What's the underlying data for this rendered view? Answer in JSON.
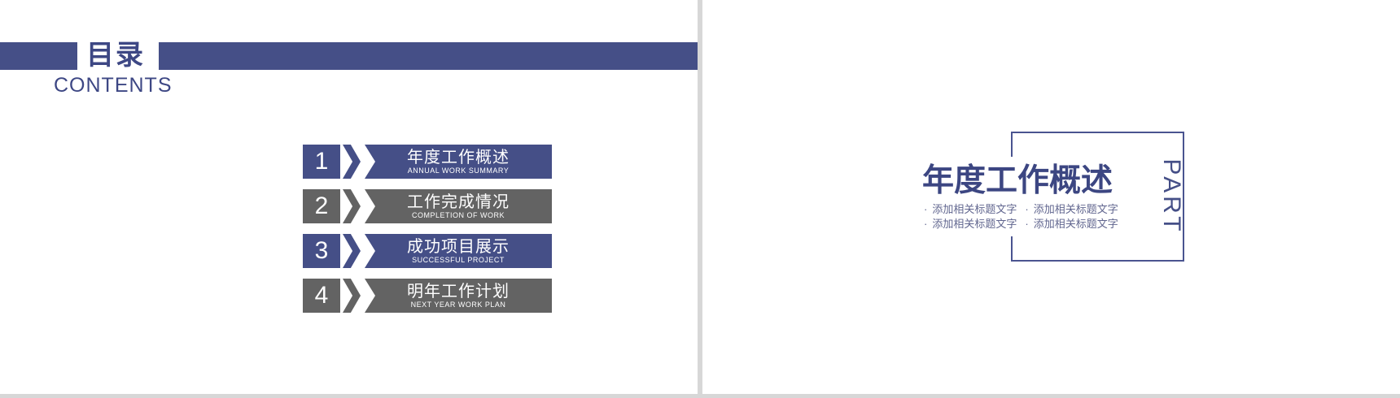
{
  "app": {
    "canvas_bg": "#d7d7d7",
    "slide_bg": "#ffffff"
  },
  "colors": {
    "primary_blue": "#454f87",
    "dark_blue_text": "#3d4784",
    "gray_bar": "#636363",
    "box_border": "#4a5490",
    "bullet_text": "#61668f"
  },
  "toc_slide": {
    "title": "目录",
    "subtitle": "CONTENTS",
    "items": [
      {
        "number": "1",
        "title": "年度工作概述",
        "caption": "ANNUAL  WORK SUMMARY",
        "theme": "blue"
      },
      {
        "number": "2",
        "title": "工作完成情况",
        "caption": "COMPLETION OF WORK",
        "theme": "gray"
      },
      {
        "number": "3",
        "title": "成功项目展示",
        "caption": "SUCCESSFUL PROJECT",
        "theme": "blue"
      },
      {
        "number": "4",
        "title": "明年工作计划",
        "caption": "NEXT YEAR WORK PLAN",
        "theme": "gray"
      }
    ]
  },
  "section_slide": {
    "part_label": "PART",
    "title": "年度工作概述",
    "bullet_char": "·",
    "bullets": [
      "添加相关标题文字",
      "添加相关标题文字",
      "添加相关标题文字",
      "添加相关标题文字"
    ]
  }
}
